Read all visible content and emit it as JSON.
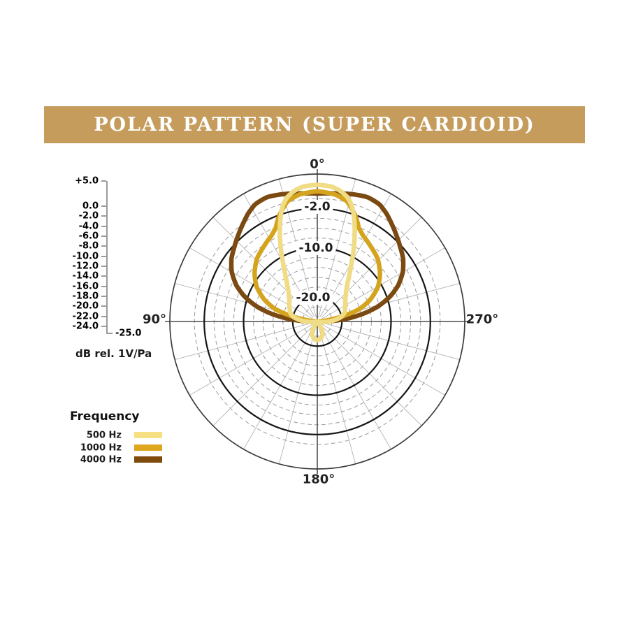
{
  "banner": {
    "title": "POLAR PATTERN (SUPER CARDIOID)",
    "bg_color": "#C59C5C",
    "text_color": "#FFFFFF"
  },
  "db_scale": {
    "items": [
      {
        "label": "+5.0",
        "db": 5
      },
      {
        "label": "0.0",
        "db": 0
      },
      {
        "label": "-2.0",
        "db": -2
      },
      {
        "label": "-4.0",
        "db": -4
      },
      {
        "label": "-6.0",
        "db": -6
      },
      {
        "label": "-8.0",
        "db": -8
      },
      {
        "label": "-10.0",
        "db": -10
      },
      {
        "label": "-12.0",
        "db": -12
      },
      {
        "label": "-14.0",
        "db": -14
      },
      {
        "label": "-16.0",
        "db": -16
      },
      {
        "label": "-18.0",
        "db": -18
      },
      {
        "label": "-20.0",
        "db": -20
      },
      {
        "label": "-22.0",
        "db": -22
      },
      {
        "label": "-24.0",
        "db": -24
      }
    ],
    "bottom_label": "-25.0",
    "unit_label": "dB rel. 1V/Pa"
  },
  "legend": {
    "title": "Frequency",
    "items": [
      {
        "label": "500 Hz",
        "color": "#F6E083"
      },
      {
        "label": "1000 Hz",
        "color": "#DFA71F"
      },
      {
        "label": "4000 Hz",
        "color": "#7E4B0D"
      }
    ]
  },
  "chart_data": {
    "type": "polar",
    "title": "Polar Pattern (Super Cardioid)",
    "angle_labels": {
      "top": "0°",
      "left": "90°",
      "right": "270°",
      "bottom": "180°"
    },
    "ring_labels": [
      "-2.0",
      "-10.0",
      "-20.0"
    ],
    "radial_axis": {
      "outer_db": 5,
      "center_db": -25,
      "major_rings_db": [
        -2,
        -10,
        -20
      ],
      "minor_rings_db": [
        0,
        -4,
        -6,
        -8,
        -12,
        -14,
        -16,
        -18,
        -22,
        -24
      ],
      "spoke_step_deg": 15
    },
    "grid_colors": {
      "minor": "#9a9a9a",
      "major": "#161616",
      "outer": "#3c3c3c",
      "spoke": "#b3b3b3",
      "axis": "#4d4d4d"
    },
    "series": [
      {
        "name": "500 Hz",
        "color": "#F0DC85",
        "points_deg_db": [
          [
            0,
            2.8
          ],
          [
            6,
            2.6
          ],
          [
            10,
            2.0
          ],
          [
            14,
            0.9
          ],
          [
            17,
            -0.6
          ],
          [
            20,
            -3.0
          ],
          [
            23,
            -5.5
          ],
          [
            26,
            -8.0
          ],
          [
            30,
            -11.0
          ],
          [
            34,
            -13.3
          ],
          [
            38,
            -15.0
          ],
          [
            44,
            -16.6
          ],
          [
            52,
            -17.8
          ],
          [
            62,
            -18.6
          ],
          [
            72,
            -19.2
          ],
          [
            80,
            -20.2
          ],
          [
            86,
            -21.6
          ],
          [
            92,
            -23.2
          ],
          [
            100,
            -24.5
          ],
          [
            108,
            -25
          ],
          [
            145,
            -25
          ],
          [
            152,
            -22.7
          ],
          [
            160,
            -22.0
          ],
          [
            170,
            -21.4
          ],
          [
            180,
            -21.2
          ]
        ]
      },
      {
        "name": "1000 Hz",
        "color": "#D5A41F",
        "points_deg_db": [
          [
            0,
            1.5
          ],
          [
            8,
            1.1
          ],
          [
            14,
            0.2
          ],
          [
            20,
            -2.2
          ],
          [
            24,
            -4.2
          ],
          [
            28,
            -5.2
          ],
          [
            35,
            -6.2
          ],
          [
            44,
            -7.3
          ],
          [
            52,
            -8.8
          ],
          [
            60,
            -10.7
          ],
          [
            68,
            -13.5
          ],
          [
            74,
            -16.3
          ],
          [
            78,
            -19.5
          ],
          [
            82,
            -22.5
          ],
          [
            86,
            -24.3
          ],
          [
            90,
            -25
          ],
          [
            180,
            -25
          ]
        ]
      },
      {
        "name": "4000 Hz",
        "color": "#7B4A12",
        "points_deg_db": [
          [
            0,
            1.0
          ],
          [
            8,
            1.3
          ],
          [
            16,
            1.9
          ],
          [
            22,
            2.3
          ],
          [
            28,
            2.0
          ],
          [
            33,
            1.0
          ],
          [
            38,
            -0.2
          ],
          [
            43,
            -1.3
          ],
          [
            48,
            -2.3
          ],
          [
            54,
            -3.4
          ],
          [
            60,
            -4.9
          ],
          [
            66,
            -7.0
          ],
          [
            71,
            -9.3
          ],
          [
            76,
            -12.2
          ],
          [
            80,
            -15.2
          ],
          [
            84,
            -18.4
          ],
          [
            87,
            -21.0
          ],
          [
            90,
            -23.5
          ],
          [
            93,
            -25
          ],
          [
            180,
            -25
          ]
        ]
      }
    ]
  }
}
